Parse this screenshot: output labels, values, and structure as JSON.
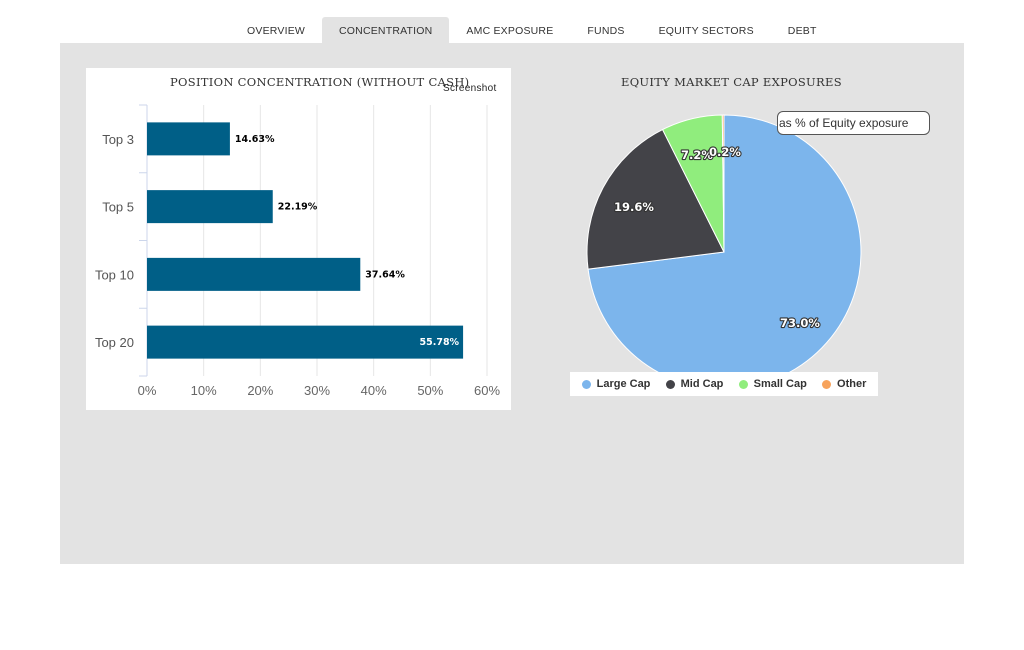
{
  "tabs": [
    {
      "label": "OVERVIEW",
      "active": false
    },
    {
      "label": "CONCENTRATION",
      "active": true
    },
    {
      "label": "AMC EXPOSURE",
      "active": false
    },
    {
      "label": "FUNDS",
      "active": false
    },
    {
      "label": "EQUITY SECTORS",
      "active": false
    },
    {
      "label": "DEBT",
      "active": false
    }
  ],
  "concentration": {
    "screenshot_label": "Screenshot"
  },
  "market_cap": {
    "tooltip": "as % of Equity exposure"
  },
  "chart_data": [
    {
      "type": "bar",
      "orientation": "horizontal",
      "title": "POSITION CONCENTRATION (WITHOUT CASH)",
      "categories": [
        "Top 3",
        "Top 5",
        "Top 10",
        "Top 20"
      ],
      "values": [
        14.63,
        22.19,
        37.64,
        55.78
      ],
      "data_labels": [
        "14.63%",
        "22.19%",
        "37.64%",
        "55.78%"
      ],
      "xlim": [
        0,
        60
      ],
      "ticks": [
        0,
        10,
        20,
        30,
        40,
        50,
        60
      ],
      "tick_labels": [
        "0%",
        "10%",
        "20%",
        "30%",
        "40%",
        "50%",
        "60%"
      ],
      "grid": true,
      "color": "#005f87"
    },
    {
      "type": "pie",
      "title": "EQUITY MARKET CAP EXPOSURES",
      "labels": [
        "Large Cap",
        "Mid Cap",
        "Small Cap",
        "Other"
      ],
      "values": [
        73.0,
        19.6,
        7.2,
        0.2
      ],
      "data_labels": [
        "73.0%",
        "19.6%",
        "7.2%",
        "0.2%"
      ],
      "colors": [
        "#7cb5ec",
        "#434348",
        "#90ed7d",
        "#f7a35c"
      ],
      "legend_position": "bottom"
    }
  ]
}
